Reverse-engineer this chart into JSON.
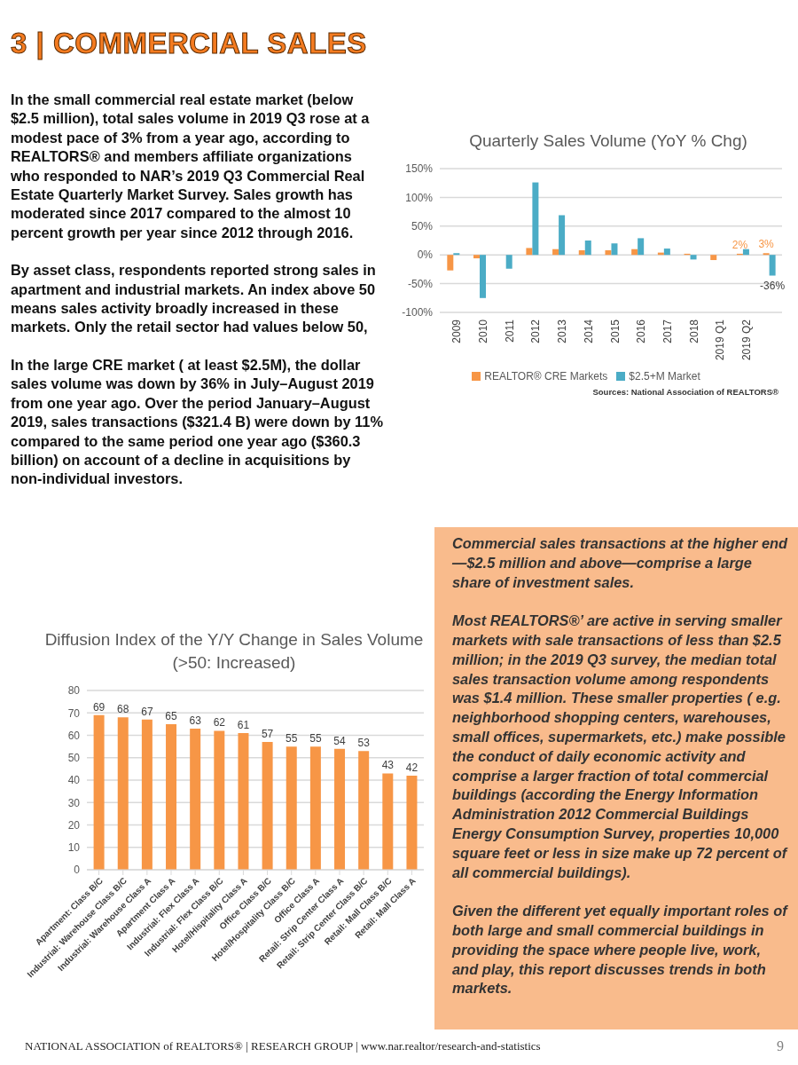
{
  "chart_data": [
    {
      "type": "other",
      "title": "3 | COMMERCIAL SALES",
      "annotations": [
        "In the small commercial real estate market (below $2.5 million), total sales volume in 2019 Q3 rose at a modest pace of 3% from a year ago, according to REALTORS® and members affiliate organizations who responded to NAR’s 2019 Q3 Commercial Real Estate Quarterly Market Survey. Sales growth has moderated since 2017 compared to the almost 10 percent growth per year since 2012 through 2016.",
        "By asset class, respondents reported strong sales in apartment and industrial markets. An index above 50  means sales activity broadly increased in these markets. Only the retail sector had values below 50,",
        "In the large CRE market ( at least $2.5M), the dollar sales volume was down by 36% in July–August 2019 from one year ago. Over the period January–August 2019, sales transactions ($321.4 B)  were down by 11% compared to the same period one year ago ($360.3 billion) on account of a decline in acquisitions  by non-individual investors."
      ]
    },
    {
      "type": "bar",
      "title": "Quarterly Sales Volume (YoY % Chg)",
      "categories": [
        "2009",
        "2010",
        "2011",
        "2012",
        "2013",
        "2014",
        "2015",
        "2016",
        "2017",
        "2018",
        "2019 Q1",
        "2019 Q2",
        null
      ],
      "series": [
        {
          "name": "REALTOR® CRE Markets",
          "color": "#f79646",
          "values": [
            -27,
            -6,
            0,
            12,
            10,
            8,
            8,
            10,
            4,
            2,
            -9,
            2,
            3
          ],
          "value_labels": [
            null,
            null,
            null,
            null,
            null,
            null,
            null,
            null,
            null,
            null,
            null,
            "2%",
            "3%"
          ]
        },
        {
          "name": "$2.5+M Market",
          "color": "#4bacc6",
          "values": [
            3,
            -75,
            -24,
            126,
            69,
            25,
            20,
            29,
            11,
            -8,
            0,
            10,
            -36
          ],
          "value_labels": [
            null,
            null,
            null,
            null,
            null,
            null,
            null,
            null,
            null,
            null,
            null,
            null,
            "-36%"
          ]
        }
      ],
      "ylim": [
        -100,
        150
      ],
      "yticks": [
        {
          "value": -100,
          "label": "-100%"
        },
        {
          "value": -50,
          "label": "-50%"
        },
        {
          "value": 0,
          "label": "0%"
        },
        {
          "value": 50,
          "label": "50%"
        },
        {
          "value": 100,
          "label": "100%"
        },
        {
          "value": 150,
          "label": "150%"
        }
      ],
      "grid": "y",
      "legend": "bottom",
      "annotations": [
        "Sources: National Association of REALTORS®"
      ]
    },
    {
      "type": "bar",
      "title": "Diffusion Index of the Y/Y Change in Sales Volume (>50: Increased)",
      "categories": [
        "Apartment: Class B/C",
        "Industrial: Warehouse Class B/C",
        "Industrial: Warehouse Class A",
        "Apartment Class A",
        "Industrial: Flex Class A",
        "Industrial: Flex Class B/C",
        "Hotel/Hispitality Class A",
        "Office Class B/C",
        "Hotel/Hospitality Class B/C",
        "Office Class A",
        "Retail: Strip Center Class A",
        "Retail: Strip Center Class B/C",
        "Retail: Mall Class B/C",
        "Retail: Mall Class A"
      ],
      "values": [
        69,
        68,
        67,
        65,
        63,
        62,
        61,
        57,
        55,
        55,
        54,
        53,
        43,
        42
      ],
      "color": "#f79646",
      "data_labels": true,
      "ylim": [
        0,
        80
      ],
      "yticks": [
        0,
        10,
        20,
        30,
        40,
        50,
        60,
        70,
        80
      ],
      "grid": "y"
    },
    {
      "type": "other",
      "annotations": [
        "Commercial sales transactions at the higher end—$2.5 million and above—comprise a large share of investment sales.",
        "Most REALTORS®’ are active in serving smaller markets with sale transactions of less than $2.5 million; in the 2019 Q3 survey, the median total sales transaction volume among respondents was $1.4 million. These smaller properties ( e.g. neighborhood shopping centers, warehouses, small offices, supermarkets, etc.) make possible the conduct of daily economic activity and comprise a larger fraction of total commercial buildings (according the Energy Information Administration 2012 Commercial Buildings Energy Consumption Survey, properties 10,000 square feet or less in size make up 72 percent of all commercial buildings).",
        "Given the different yet equally important roles of both large and small commercial buildings in providing the space where people live, work, and play, this report discusses trends in both markets."
      ]
    },
    {
      "type": "other",
      "annotations": [
        "NATIONAL ASSOCIATION of REALTORS® | RESEARCH GROUP | www.nar.realtor/research-and-statistics",
        "9"
      ]
    }
  ]
}
